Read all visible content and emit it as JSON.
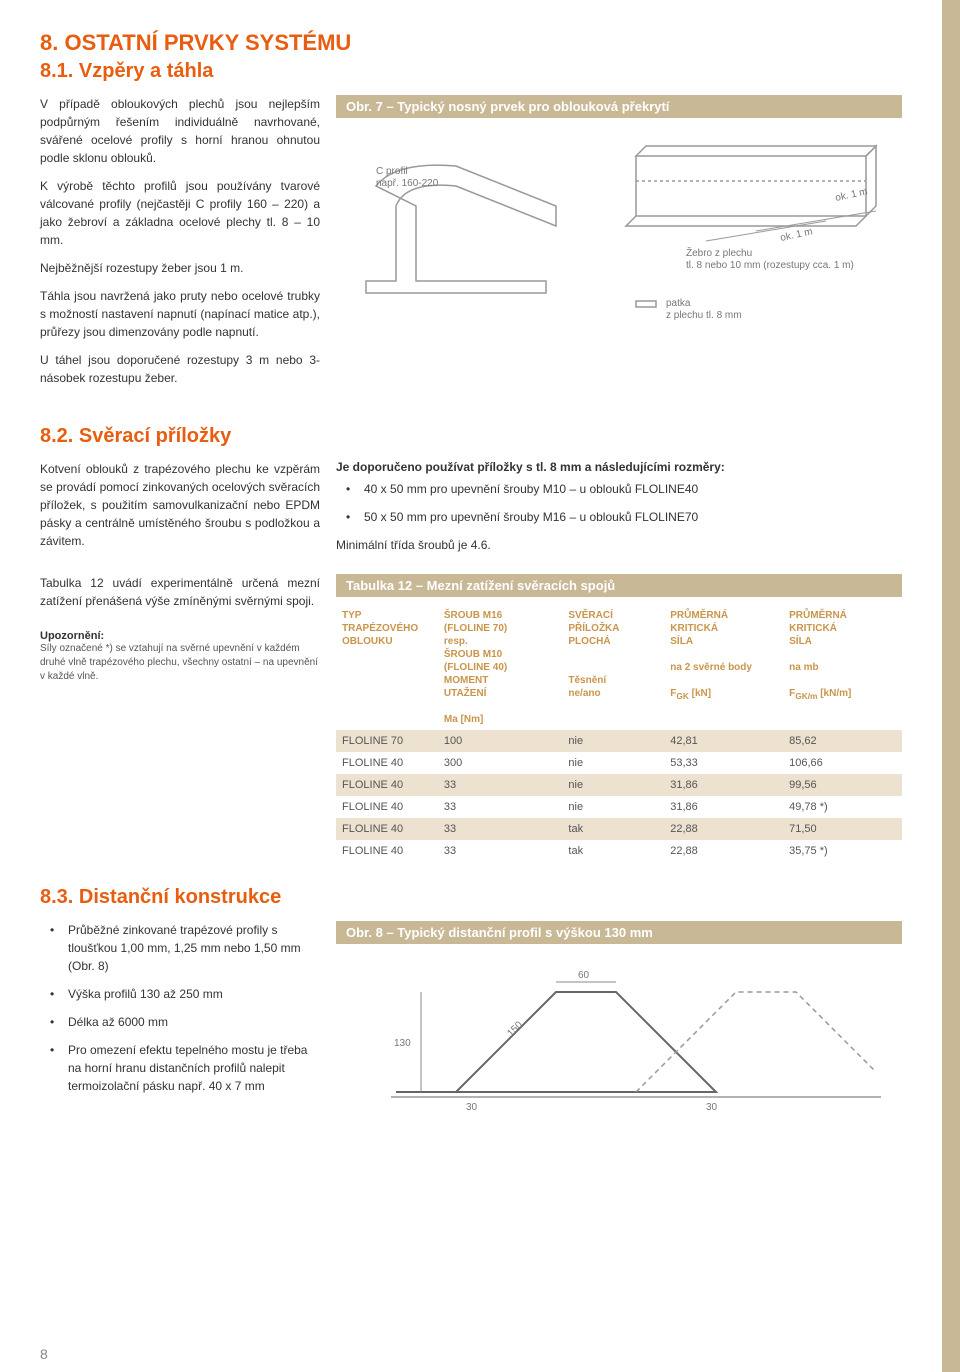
{
  "section8": {
    "title": "8.   OSTATNÍ PRVKY SYSTÉMU",
    "s81": {
      "title": "8.1. Vzpěry a táhla",
      "p1": "V případě obloukových plechů jsou nejlepším podpůrným řešením individuálně navrhované, svářené ocelové profily s horní hranou ohnutou podle sklonu oblouků.",
      "p2": "K výrobě těchto profilů jsou používány tvarové válcované profily (nejčastěji C profily 160 – 220) a jako žebroví a základna ocelové plechy tl. 8 – 10 mm.",
      "p3": "Nejběžnější rozestupy žeber jsou 1 m.",
      "p4": "Táhla jsou navržená jako pruty nebo ocelové trubky s možností nastavení napnutí (napínací matice atp.), průřezy jsou dimenzovány podle napnutí.",
      "p5": "U táhel jsou doporučené rozestupy 3 m nebo 3-násobek rozestupu žeber.",
      "fig7": {
        "caption": "Obr. 7 – Typický nosný prvek pro oblouková překrytí",
        "label_cprofil": "C profil",
        "label_napr": "např. 160-220",
        "label_ok1": "ok. 1 m",
        "label_ok2": "ok. 1 m",
        "label_zebro1": "Žebro z plechu",
        "label_zebro2": "tl. 8 nebo 10 mm (rozestupy cca. 1 m)",
        "label_patka1": "patka",
        "label_patka2": "z plechu tl. 8 mm"
      }
    },
    "s82": {
      "title": "8.2. Svěrací příložky",
      "p1": "Kotvení oblouků z trapézového plechu ke vzpěrám se provádí pomocí zinkovaných ocelových svěracích příložek, s použitím samovulkanizační nebo EPDM pásky a centrálně umístěného šroubu s podložkou a závitem.",
      "intro": "Je doporučeno používat příložky s tl. 8 mm a následujícími rozměry:",
      "li1": "40 x 50 mm pro upevnění šrouby M10 – u oblouků FLOLINE40",
      "li2": "50 x 50 mm pro upevnění šrouby M16 – u oblouků FLOLINE70",
      "pmin": "Minimální třída šroubů je 4.6.",
      "p2": "Tabulka 12 uvádí experimentálně určená mezní zatížení přenášená výše zmíněnými svěrnými spoji.",
      "upoz_title": "Upozornění:",
      "upoz_body": "Síly označené *) se vztahují na svěrné upevnění v každém druhé vlně trapézového plechu, všechny ostatní – na upevnění v každé vlně.",
      "table12": {
        "caption": "Tabulka 12 – Mezní zatížení svěracích spojů",
        "headers": {
          "c1a": "TYP",
          "c1b": "TRAPÉZOVÉHO",
          "c1c": "OBLOUKU",
          "c2a": "ŠROUB M16",
          "c2b": "(FLOLINE 70)",
          "c2c": "resp.",
          "c2d": "ŠROUB M10",
          "c2e": "(FLOLINE 40)",
          "c2f": "MOMENT",
          "c2g": "UTAŽENÍ",
          "c2h": "Ma [Nm]",
          "c3a": "SVĚRACÍ",
          "c3b": "PŘÍLOŽKA",
          "c3c": "PLOCHÁ",
          "c3d": "Těsnění",
          "c3e": "ne/ano",
          "c4a": "PRŮMĚRNÁ",
          "c4b": "KRITICKÁ",
          "c4c": "SÍLA",
          "c4d": "na 2 svěrné body",
          "c4e": "F",
          "c4f": " [kN]",
          "c4sub": "GK",
          "c5a": "PRŮMĚRNÁ",
          "c5b": "KRITICKÁ",
          "c5c": "SÍLA",
          "c5d": "na mb",
          "c5e": "F",
          "c5f": " [kN/m]",
          "c5sub": "GK/m"
        },
        "rows": [
          {
            "c1": "FLOLINE 70",
            "c2": "100",
            "c3": "nie",
            "c4": "42,81",
            "c5": "85,62",
            "shaded": true
          },
          {
            "c1": "FLOLINE 40",
            "c2": "300",
            "c3": "nie",
            "c4": "53,33",
            "c5": "106,66",
            "shaded": false
          },
          {
            "c1": "FLOLINE 40",
            "c2": "33",
            "c3": "nie",
            "c4": "31,86",
            "c5": "99,56",
            "shaded": true
          },
          {
            "c1": "FLOLINE 40",
            "c2": "33",
            "c3": "nie",
            "c4": "31,86",
            "c5": "49,78 *)",
            "shaded": false
          },
          {
            "c1": "FLOLINE 40",
            "c2": "33",
            "c3": "tak",
            "c4": "22,88",
            "c5": "71,50",
            "shaded": true
          },
          {
            "c1": "FLOLINE 40",
            "c2": "33",
            "c3": "tak",
            "c4": "22,88",
            "c5": "35,75 *)",
            "shaded": false
          }
        ]
      }
    },
    "s83": {
      "title": "8.3. Distanční konstrukce",
      "li1": "Průběžné zinkované trapézové profily s tloušťkou 1,00 mm, 1,25 mm nebo 1,50 mm (Obr. 8)",
      "li2": "Výška profilů 130 až 250 mm",
      "li3": "Délka až 6000 mm",
      "li4": "Pro omezení efektu tepelného mostu je třeba na horní hranu distančních profilů nalepit termoizolační pásku např. 40 x 7 mm",
      "fig8": {
        "caption": "Obr. 8 – Typický distanční profil s výškou 130 mm",
        "dim_top": "60",
        "dim_left": "130",
        "dim_slant": "150",
        "dim_b1": "30",
        "dim_b2": "30"
      }
    }
  },
  "page_number": "8",
  "colors": {
    "accent": "#e85d0f",
    "tan": "#c9b896",
    "tan_light": "#ede1d0",
    "table_header": "#c9954a"
  }
}
